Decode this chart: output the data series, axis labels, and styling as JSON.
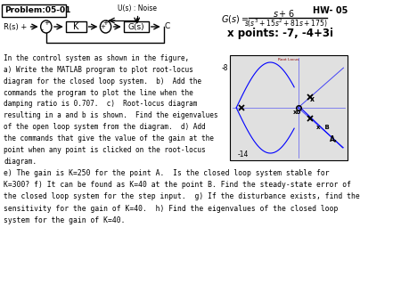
{
  "title_problem": "Problem:05-01",
  "title_hw": "HW- 05",
  "block_diagram": {
    "noise_label": "U(s) : Noise",
    "r_label": "R(s) +",
    "k_label": "K",
    "g_label": "G(s)",
    "c_label": "C"
  },
  "x_points_text": "x points: -7, -4+3i",
  "main_text_lines": [
    "In the control system as shown in the figure,",
    "a) Write the MATLAB program to plot root-locus",
    "diagram for the closed loop system.  b)  Add the",
    "commands the program to plot the line when the",
    "damping ratio is 0.707.  c)  Root-locus diagram",
    "resulting in a and b is shown.  Find the eigenvalues",
    "of the open loop system from the diagram.  d) Add",
    "the commands that give the value of the gain at the",
    "point when any point is clicked on the root-locus",
    "diagram."
  ],
  "bottom_text_lines": [
    "e) The gain is K=250 for the point A.  Is the closed loop system stable for",
    "K=300? f) It can be found as K=40 at the point B. Find the steady-state error of",
    "the closed loop system for the step input.  g) If the disturbance exists, find the",
    "sensitivity for the gain of K=40.  h) Find the eigenvalues of the closed loop",
    "system for the gain of K=40."
  ],
  "bg_color": "#ffffff",
  "text_color": "#000000"
}
